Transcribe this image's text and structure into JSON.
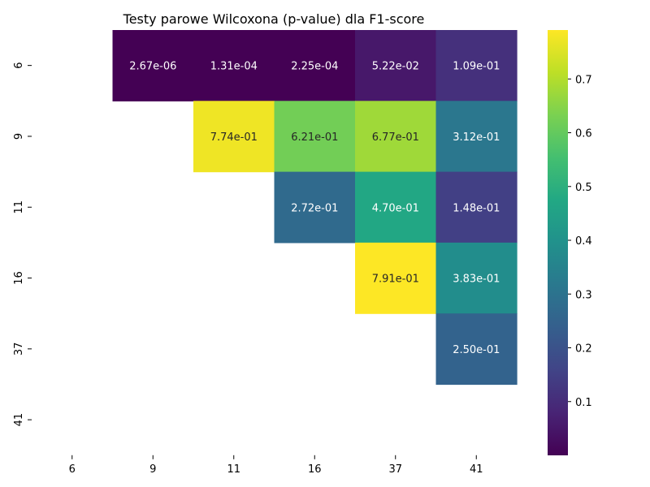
{
  "chart_data": {
    "type": "heatmap",
    "title": "Testy parowe Wilcoxona (p-value) dla F1-score",
    "xlabel": "",
    "ylabel": "",
    "x_categories": [
      "6",
      "9",
      "11",
      "16",
      "37",
      "41"
    ],
    "y_categories": [
      "6",
      "9",
      "11",
      "16",
      "37",
      "41"
    ],
    "cells": [
      {
        "row": "6",
        "col": "9",
        "value": 2.67e-06,
        "label": "2.67e-06"
      },
      {
        "row": "6",
        "col": "11",
        "value": 0.000131,
        "label": "1.31e-04"
      },
      {
        "row": "6",
        "col": "16",
        "value": 0.000225,
        "label": "2.25e-04"
      },
      {
        "row": "6",
        "col": "37",
        "value": 0.0522,
        "label": "5.22e-02"
      },
      {
        "row": "6",
        "col": "41",
        "value": 0.109,
        "label": "1.09e-01"
      },
      {
        "row": "9",
        "col": "11",
        "value": 0.774,
        "label": "7.74e-01"
      },
      {
        "row": "9",
        "col": "16",
        "value": 0.621,
        "label": "6.21e-01"
      },
      {
        "row": "9",
        "col": "37",
        "value": 0.677,
        "label": "6.77e-01"
      },
      {
        "row": "9",
        "col": "41",
        "value": 0.312,
        "label": "3.12e-01"
      },
      {
        "row": "11",
        "col": "16",
        "value": 0.272,
        "label": "2.72e-01"
      },
      {
        "row": "11",
        "col": "37",
        "value": 0.47,
        "label": "4.70e-01"
      },
      {
        "row": "11",
        "col": "41",
        "value": 0.148,
        "label": "1.48e-01"
      },
      {
        "row": "16",
        "col": "37",
        "value": 0.791,
        "label": "7.91e-01"
      },
      {
        "row": "16",
        "col": "41",
        "value": 0.383,
        "label": "3.83e-01"
      },
      {
        "row": "37",
        "col": "41",
        "value": 0.25,
        "label": "2.50e-01"
      }
    ],
    "colormap": "viridis",
    "color_range": [
      0.0,
      0.791
    ],
    "colorbar_ticks": [
      "0.1",
      "0.2",
      "0.3",
      "0.4",
      "0.5",
      "0.6",
      "0.7"
    ],
    "grid": false,
    "legend": "colorbar-right"
  }
}
